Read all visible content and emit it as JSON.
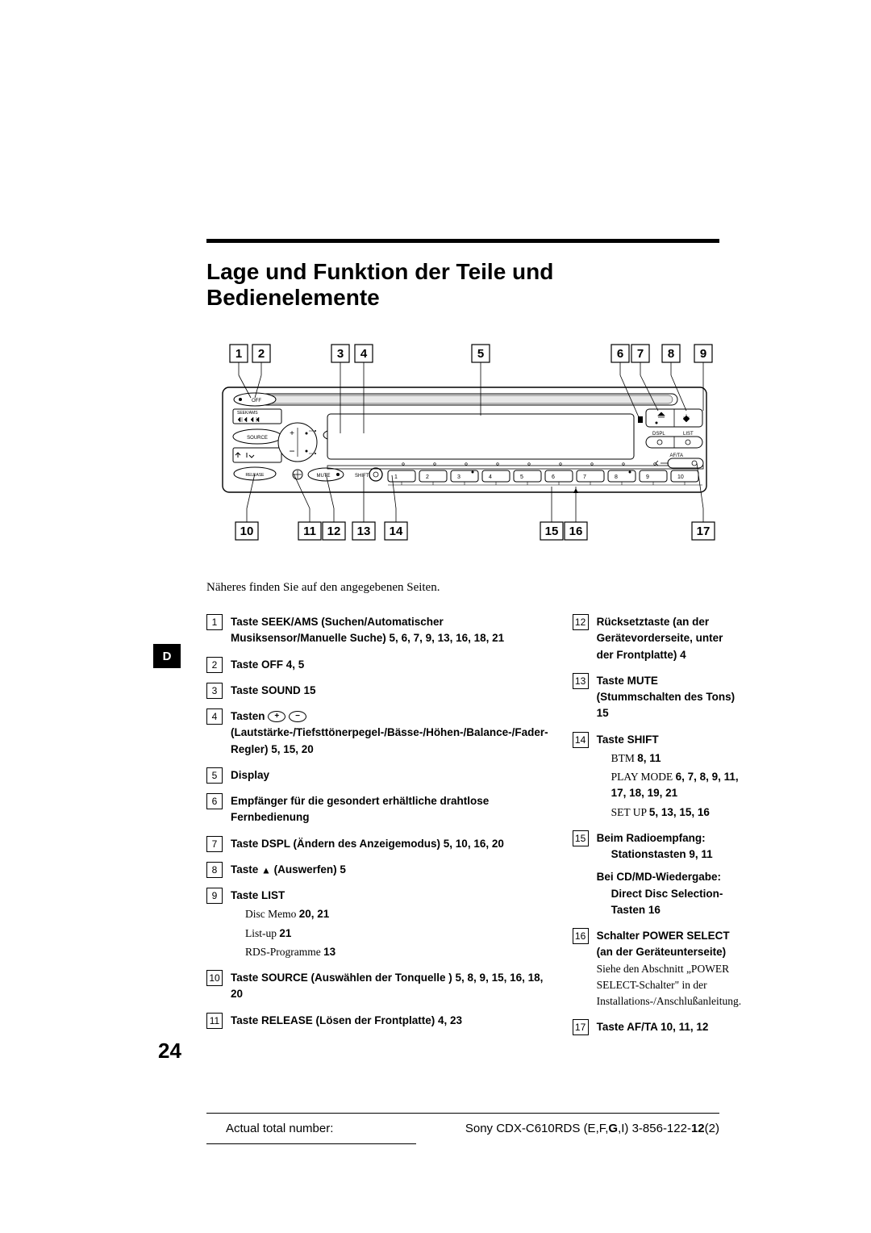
{
  "title": "Lage und Funktion der Teile und Bedienelemente",
  "intro": "Näheres finden Sie auf den angegebenen Seiten.",
  "side_tab": "D",
  "page_number": "24",
  "diagram": {
    "top_labels": [
      "1",
      "2",
      "3",
      "4",
      "5",
      "6",
      "7",
      "8",
      "9"
    ],
    "bottom_labels": [
      "10",
      "11",
      "12",
      "13",
      "14",
      "15",
      "16",
      "17"
    ],
    "buttons": {
      "off": "OFF",
      "seek": "SEEK/AMS",
      "source": "SOURCE",
      "sound": "SOUND",
      "release": "RELEASE",
      "mute": "MUTE",
      "shift": "SHIFT",
      "dspl": "DSPL",
      "list": "LIST",
      "afta": "AF/TA",
      "presets": [
        "1",
        "2",
        "3",
        "4",
        "5",
        "6",
        "7",
        "8",
        "9",
        "10"
      ]
    }
  },
  "left_items": [
    {
      "n": "1",
      "title": "Taste SEEK/AMS (Suchen/Automatischer Musiksensor/Manuelle Suche)  5, 6, 7, 9, 13, 16, 18, 21"
    },
    {
      "n": "2",
      "title": "Taste OFF  4, 5"
    },
    {
      "n": "3",
      "title": "Taste SOUND  15"
    },
    {
      "n": "4",
      "title": "Tasten (+) (−) (Lautstärke-/Tiefsttönerpegel-/Bässe-/Höhen-/Balance-/Fader-Regler)  5, 15, 20",
      "plusminus": true
    },
    {
      "n": "5",
      "title": "Display"
    },
    {
      "n": "6",
      "title": "Empfänger für die gesondert erhältliche drahtlose Fernbedienung"
    },
    {
      "n": "7",
      "title": "Taste DSPL (Ändern des Anzeigemodus)  5, 10, 16, 20"
    },
    {
      "n": "8",
      "title": "Taste ⏏ (Auswerfen)  5",
      "eject": true
    },
    {
      "n": "9",
      "title": "Taste LIST",
      "subs": [
        {
          "text": "Disc Memo  ",
          "pages": "20, 21"
        },
        {
          "text": "List-up  ",
          "pages": "21"
        },
        {
          "text": "RDS-Programme  ",
          "pages": "13"
        }
      ]
    },
    {
      "n": "10",
      "title": "Taste SOURCE (Auswählen der Tonquelle )  5, 8, 9, 15, 16, 18, 20"
    },
    {
      "n": "11",
      "title": "Taste RELEASE (Lösen der Frontplatte) 4, 23"
    }
  ],
  "right_items": [
    {
      "n": "12",
      "title": "Rücksetztaste (an der Gerätevorderseite, unter der Frontplatte)  4"
    },
    {
      "n": "13",
      "title": "Taste MUTE (Stummschalten des Tons)  15"
    },
    {
      "n": "14",
      "title": "Taste SHIFT",
      "subs": [
        {
          "text": "BTM  ",
          "pages": "8, 11"
        },
        {
          "text": "PLAY MODE  ",
          "pages": "6, 7, 8, 9, 11, 17, 18, 19, 21"
        },
        {
          "text": "SET UP  ",
          "pages": "5, 13, 15, 16"
        }
      ]
    },
    {
      "n": "15",
      "title": "Beim Radioempfang:",
      "title2": "Stationstasten  9, 11",
      "title3": "Bei CD/MD-Wiedergabe:",
      "title4": "Direct Disc Selection-Tasten  16"
    },
    {
      "n": "16",
      "title": "Schalter POWER SELECT (an der Geräteunterseite)",
      "desc": "Siehe den Abschnitt „POWER SELECT-Schalter\" in der Installations-/Anschlußanleitung."
    },
    {
      "n": "17",
      "title": "Taste AF/TA  10, 11, 12"
    }
  ],
  "footer": {
    "left": "Actual total number:",
    "right_prefix": "Sony CDX-C610RDS (E,F,",
    "right_bold": "G",
    "right_mid": ",I)  3-856-122-",
    "right_bold2": "12",
    "right_suffix": "(2)"
  }
}
